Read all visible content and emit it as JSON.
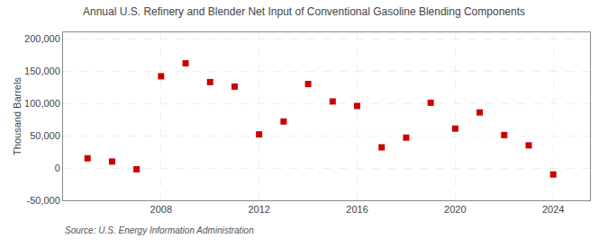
{
  "chart_data": {
    "type": "scatter",
    "title": "Annual U.S. Refinery and Blender Net Input of Conventional Gasoline Blending Components",
    "ylabel": "Thousand Barrels",
    "x": [
      2005,
      2006,
      2007,
      2008,
      2009,
      2010,
      2011,
      2012,
      2013,
      2014,
      2015,
      2016,
      2017,
      2018,
      2019,
      2020,
      2021,
      2022,
      2023,
      2024
    ],
    "values": [
      15000,
      10000,
      -2000,
      142000,
      162000,
      133000,
      126000,
      52000,
      72000,
      130000,
      103000,
      96000,
      32000,
      47000,
      101000,
      61000,
      86000,
      51000,
      35000,
      -10000
    ],
    "color": "#cc0000",
    "marker": "square",
    "xlim": [
      2004.0,
      2025.5
    ],
    "xticks": [
      2008,
      2012,
      2016,
      2020,
      2024
    ],
    "ylim": [
      -50000,
      210000
    ],
    "yticks": [
      {
        "value": -50000,
        "label": "-50,000"
      },
      0,
      {
        "value": 50000,
        "label": "50,000"
      },
      {
        "value": 100000,
        "label": "100,000"
      },
      {
        "value": 150000,
        "label": "150,000"
      },
      {
        "value": 200000,
        "label": "200,000"
      }
    ],
    "grid": true,
    "annotations": [
      "Source: U.S. Energy Information Administration"
    ]
  }
}
